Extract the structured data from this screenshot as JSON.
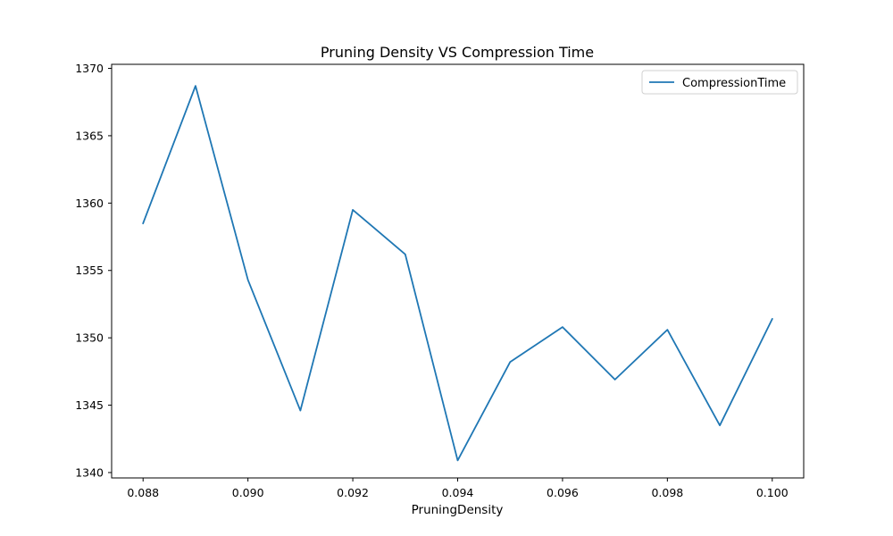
{
  "chart_data": {
    "type": "line",
    "title": "Pruning Density VS Compression Time",
    "xlabel": "PruningDensity",
    "ylabel": "",
    "xlim": [
      0.0874,
      0.1006
    ],
    "ylim": [
      1339.6,
      1370.3
    ],
    "xticks": [
      0.088,
      0.09,
      0.092,
      0.094,
      0.096,
      0.098,
      0.1
    ],
    "xtick_labels": [
      "0.088",
      "0.090",
      "0.092",
      "0.094",
      "0.096",
      "0.098",
      "0.100"
    ],
    "yticks": [
      1340,
      1345,
      1350,
      1355,
      1360,
      1365,
      1370
    ],
    "ytick_labels": [
      "1340",
      "1345",
      "1350",
      "1355",
      "1360",
      "1365",
      "1370"
    ],
    "grid": false,
    "legend": {
      "position": "top-right",
      "entries": [
        "CompressionTime"
      ]
    },
    "series": [
      {
        "name": "CompressionTime",
        "color": "#1f77b4",
        "x": [
          0.088,
          0.089,
          0.09,
          0.091,
          0.092,
          0.093,
          0.094,
          0.095,
          0.096,
          0.097,
          0.098,
          0.099,
          0.1
        ],
        "y": [
          1358.5,
          1368.7,
          1354.3,
          1344.6,
          1359.5,
          1356.2,
          1340.9,
          1348.2,
          1350.8,
          1346.9,
          1350.6,
          1343.5,
          1351.4
        ]
      }
    ]
  }
}
